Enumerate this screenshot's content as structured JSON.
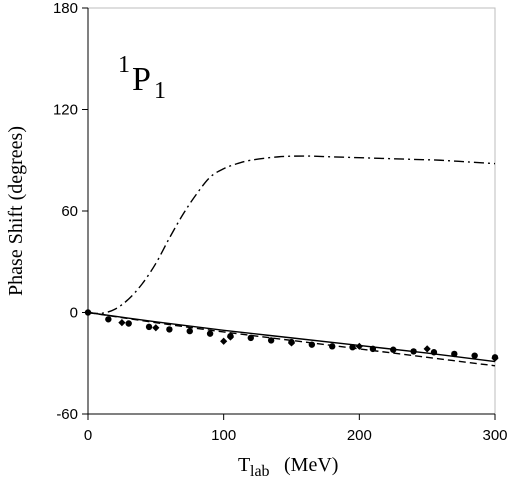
{
  "chart_data": {
    "type": "line",
    "title": "",
    "panel_label": {
      "sup": "1",
      "main": "P",
      "sub": "1"
    },
    "xlabel": {
      "main": "T",
      "sub": "lab",
      "unit": "(MeV)"
    },
    "ylabel": "Phase Shift (degrees)",
    "xlim": [
      0,
      300
    ],
    "ylim": [
      -60,
      180
    ],
    "xticks": [
      "0",
      "100",
      "200",
      "300"
    ],
    "yticks": [
      "-60",
      "0",
      "60",
      "120",
      "180"
    ],
    "grid": false,
    "series": [
      {
        "style": "solid",
        "x": [
          0,
          50,
          100,
          150,
          200,
          250,
          300
        ],
        "y": [
          0,
          -5.5,
          -10.5,
          -15,
          -19.5,
          -24,
          -29
        ]
      },
      {
        "style": "dashed",
        "x": [
          0,
          50,
          100,
          150,
          200,
          250,
          300
        ],
        "y": [
          0,
          -6,
          -11.5,
          -16.5,
          -21.5,
          -26.5,
          -31.5
        ]
      },
      {
        "style": "dash-dot",
        "x": [
          0,
          10,
          20,
          30,
          40,
          50,
          60,
          70,
          80,
          90,
          100,
          110,
          120,
          140,
          160,
          180,
          200,
          220,
          240,
          260,
          280,
          300
        ],
        "y": [
          0,
          -0.5,
          2,
          8,
          17,
          29,
          44,
          58,
          70,
          80,
          85,
          88,
          90,
          92,
          92.5,
          92,
          91.5,
          91,
          90.5,
          90,
          89,
          88
        ]
      },
      {
        "style": "points",
        "marker": "circle",
        "x": [
          0,
          15,
          30,
          45,
          60,
          75,
          90,
          105,
          120,
          135,
          150,
          165,
          180,
          195,
          210,
          225,
          240,
          255,
          270,
          285,
          300
        ],
        "y": [
          0,
          -4,
          -6.5,
          -8.5,
          -10,
          -11,
          -12.5,
          -14,
          -15,
          -16.5,
          -17.5,
          -19,
          -20,
          -20.5,
          -21.5,
          -22,
          -23,
          -23.5,
          -24.5,
          -25.5,
          -26.5
        ]
      },
      {
        "style": "points",
        "marker": "diamond",
        "x": [
          25,
          50,
          100,
          105,
          150,
          200,
          250,
          300
        ],
        "y": [
          -6,
          -9,
          -17,
          -14.5,
          -18,
          -20,
          -21.5,
          -27
        ]
      }
    ]
  }
}
